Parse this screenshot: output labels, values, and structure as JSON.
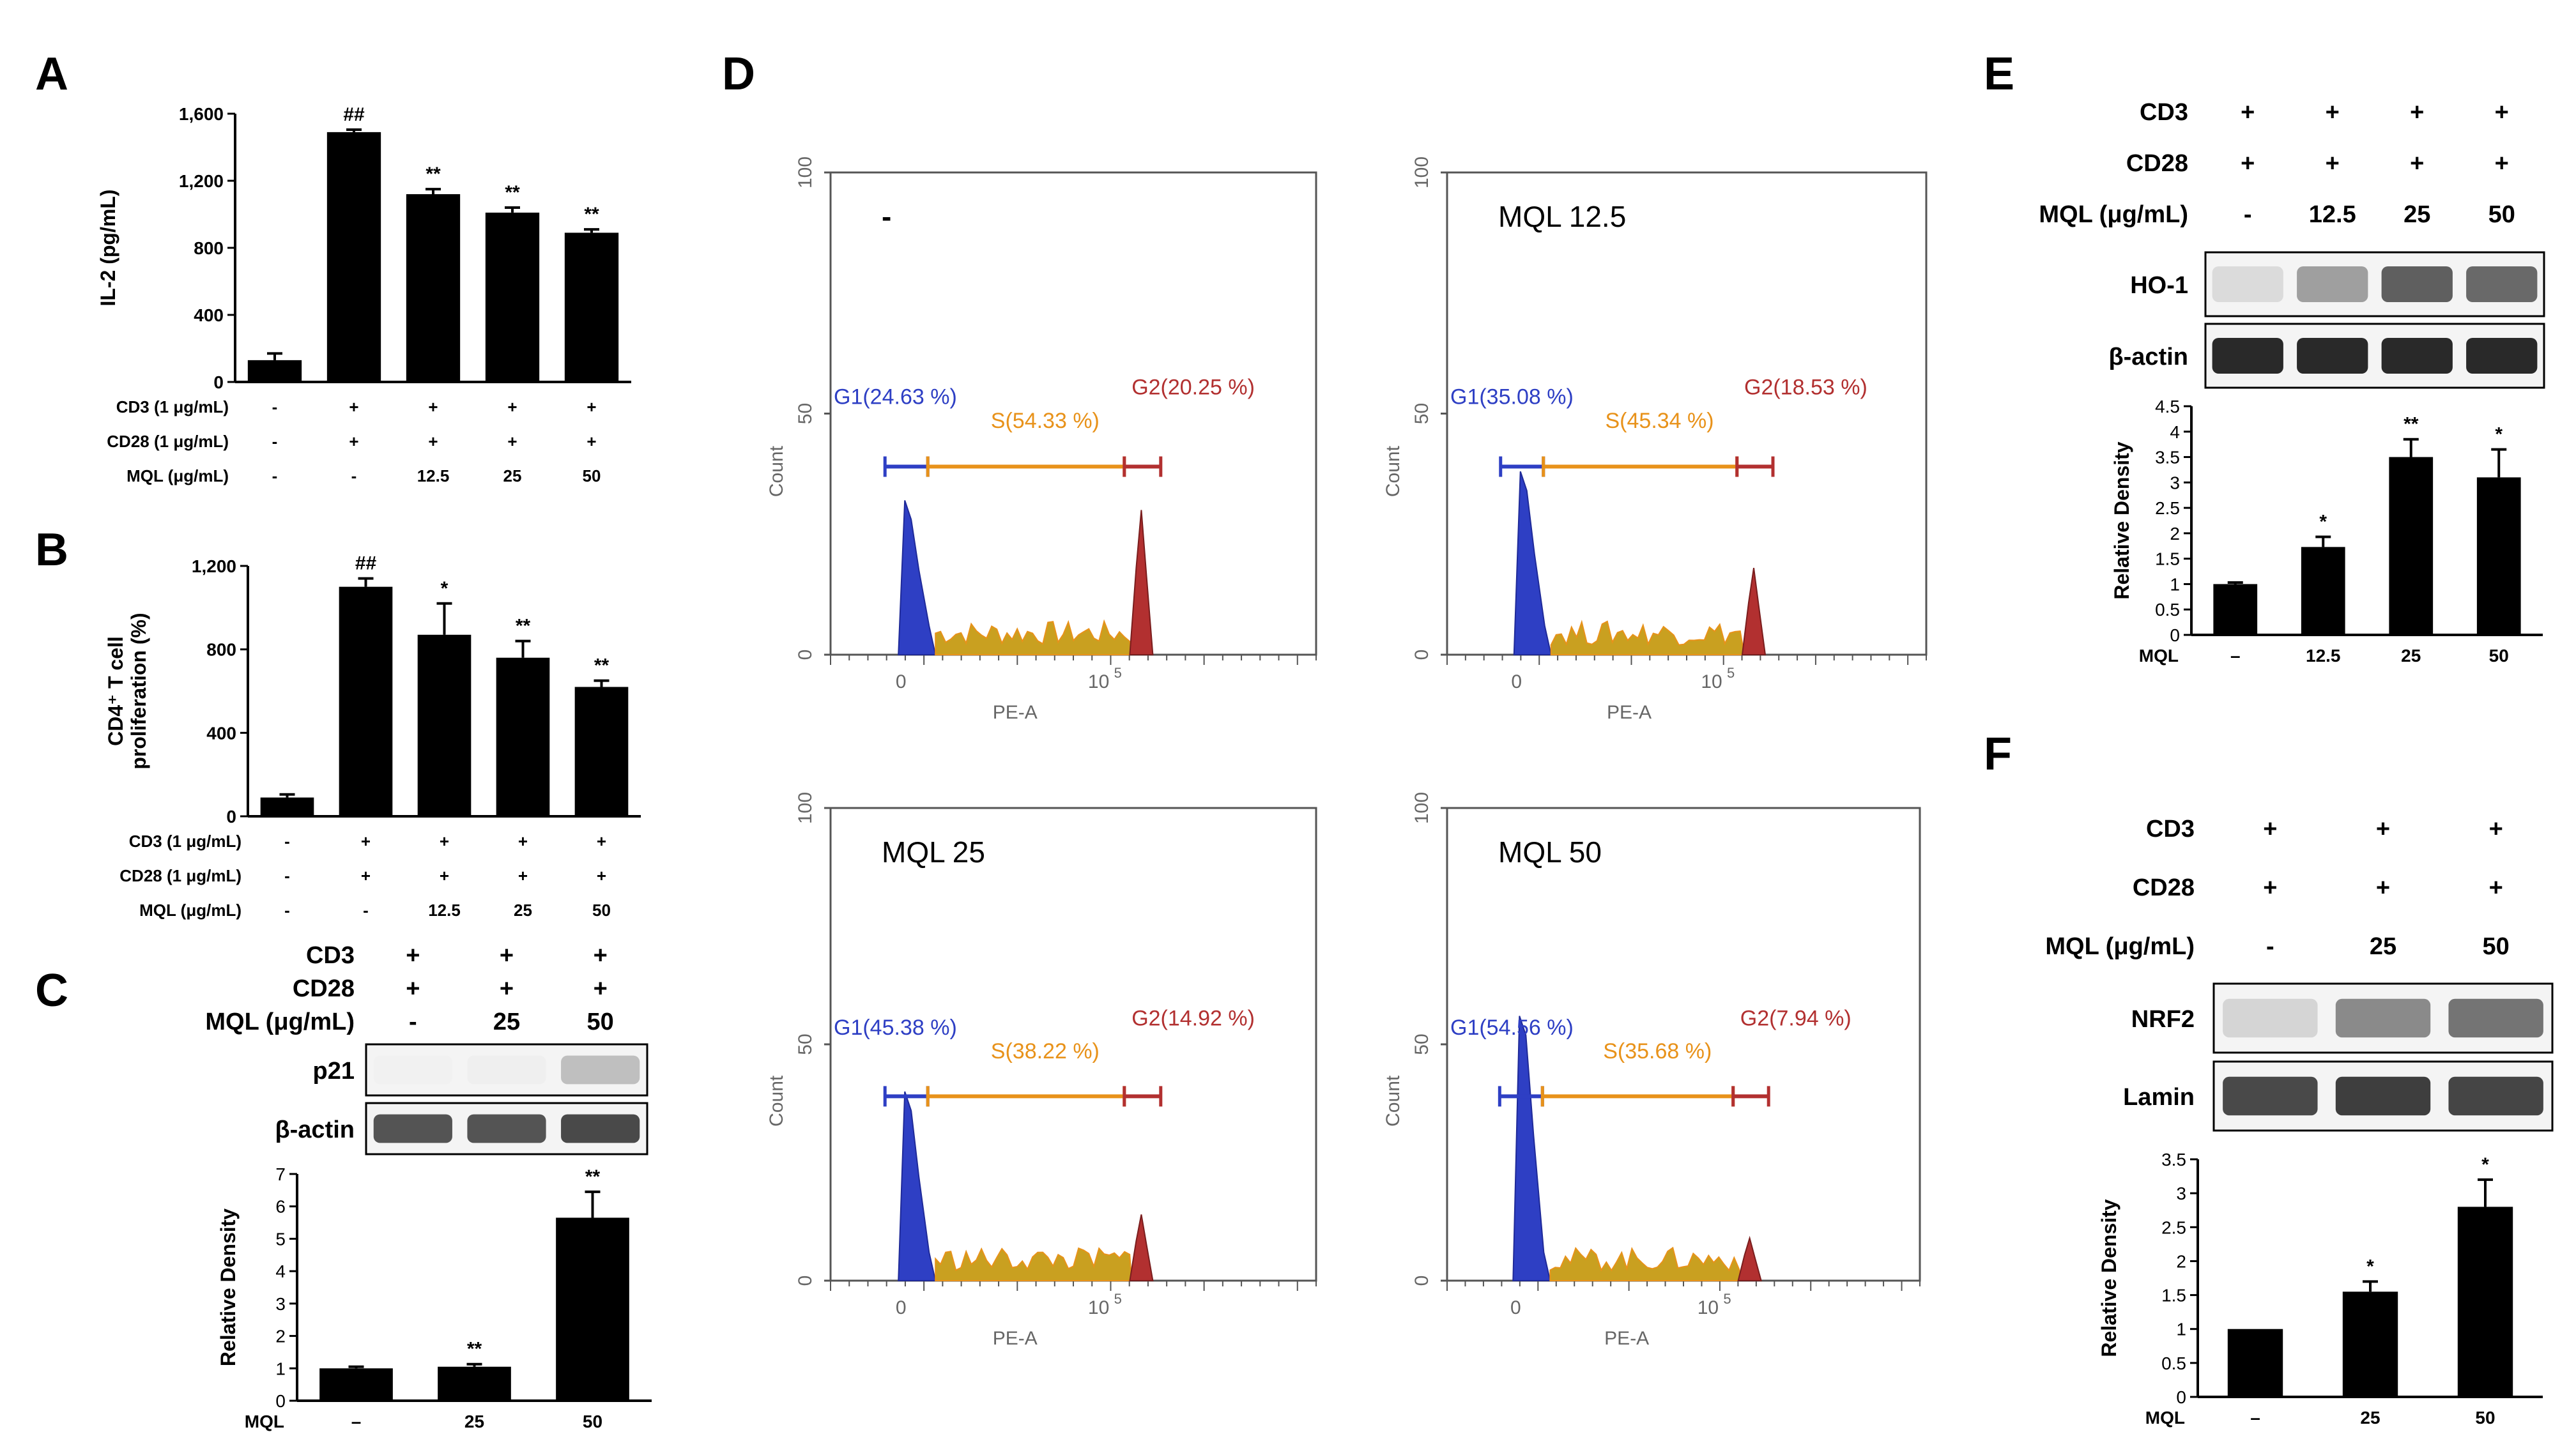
{
  "panel_labels": [
    "A",
    "B",
    "C",
    "D",
    "E",
    "F"
  ],
  "charts": {
    "A": {
      "type": "bar",
      "ylabel": "IL-2 (pg/mL)",
      "yticks": [
        "0",
        "400",
        "800",
        "1,200",
        "1,600"
      ],
      "ylim": [
        0,
        1600
      ],
      "values": [
        130,
        1490,
        1120,
        1010,
        890
      ],
      "errors": [
        40,
        15,
        30,
        30,
        20
      ],
      "sig": [
        "",
        "##",
        "**",
        "**",
        "**"
      ],
      "conditions": [
        {
          "label": "CD3 (1 μg/mL)",
          "values": [
            "-",
            "+",
            "+",
            "+",
            "+"
          ]
        },
        {
          "label": "CD28 (1 μg/mL)",
          "values": [
            "-",
            "+",
            "+",
            "+",
            "+"
          ]
        },
        {
          "label": "MQL (μg/mL)",
          "values": [
            "-",
            "-",
            "12.5",
            "25",
            "50"
          ]
        }
      ]
    },
    "B": {
      "type": "bar",
      "ylabel_line1": "CD4⁺ T cell",
      "ylabel_line2": "proliferation (%)",
      "yticks": [
        "0",
        "400",
        "800",
        "1,200"
      ],
      "ylim": [
        0,
        1200
      ],
      "values": [
        90,
        1100,
        870,
        760,
        620
      ],
      "errors": [
        15,
        40,
        150,
        80,
        30
      ],
      "sig": [
        "",
        "##",
        "*",
        "**",
        "**"
      ],
      "conditions": [
        {
          "label": "CD3 (1 μg/mL)",
          "values": [
            "-",
            "+",
            "+",
            "+",
            "+"
          ]
        },
        {
          "label": "CD28 (1 μg/mL)",
          "values": [
            "-",
            "+",
            "+",
            "+",
            "+"
          ]
        },
        {
          "label": "MQL (μg/mL)",
          "values": [
            "-",
            "-",
            "12.5",
            "25",
            "50"
          ]
        }
      ]
    },
    "C": {
      "type": "bar",
      "ylabel": "Relative Density",
      "yticks": [
        "0",
        "1",
        "2",
        "3",
        "4",
        "5",
        "6",
        "7"
      ],
      "ylim": [
        0,
        7
      ],
      "categories": [
        "–",
        "25",
        "50"
      ],
      "xlabel": "MQL",
      "values": [
        1.0,
        1.05,
        5.65
      ],
      "errors": [
        0.05,
        0.08,
        0.8
      ],
      "sig": [
        "",
        "**",
        "**"
      ]
    },
    "E": {
      "type": "bar",
      "ylabel": "Relative Density",
      "yticks": [
        "0",
        "0.5",
        "1",
        "1.5",
        "2",
        "2.5",
        "3",
        "3.5",
        "4",
        "4.5"
      ],
      "ylim": [
        0,
        4.5
      ],
      "categories": [
        "–",
        "12.5",
        "25",
        "50"
      ],
      "xlabel": "MQL",
      "values": [
        1.0,
        1.73,
        3.5,
        3.1
      ],
      "errors": [
        0.03,
        0.2,
        0.35,
        0.55
      ],
      "sig": [
        "",
        "*",
        "**",
        "*"
      ]
    },
    "F": {
      "type": "bar",
      "ylabel": "Relative Density",
      "yticks": [
        "0",
        "0.5",
        "1",
        "1.5",
        "2",
        "2.5",
        "3",
        "3.5"
      ],
      "ylim": [
        0,
        3.5
      ],
      "categories": [
        "–",
        "25",
        "50"
      ],
      "xlabel": "MQL",
      "values": [
        1.0,
        1.55,
        2.8
      ],
      "errors": [
        0.0,
        0.15,
        0.4
      ],
      "sig": [
        "",
        "*",
        "*"
      ]
    }
  },
  "blots": {
    "C": {
      "rows": [
        {
          "label": "CD3",
          "values": [
            "+",
            "+",
            "+"
          ]
        },
        {
          "label": "CD28",
          "values": [
            "+",
            "+",
            "+"
          ]
        },
        {
          "label": "MQL (μg/mL)",
          "values": [
            "-",
            "25",
            "50"
          ]
        }
      ],
      "bands": [
        {
          "label": "p21",
          "intensities": [
            0.02,
            0.03,
            0.25
          ]
        },
        {
          "label": "β-actin",
          "intensities": [
            0.75,
            0.75,
            0.8
          ]
        }
      ]
    },
    "E": {
      "rows": [
        {
          "label": "CD3",
          "values": [
            "+",
            "+",
            "+",
            "+"
          ]
        },
        {
          "label": "CD28",
          "values": [
            "+",
            "+",
            "+",
            "+"
          ]
        },
        {
          "label": "MQL (μg/mL)",
          "values": [
            "-",
            "12.5",
            "25",
            "50"
          ]
        }
      ],
      "bands": [
        {
          "label": "HO-1",
          "intensities": [
            0.12,
            0.4,
            0.7,
            0.65
          ]
        },
        {
          "label": "β-actin",
          "intensities": [
            0.95,
            0.95,
            0.95,
            0.95
          ]
        }
      ]
    },
    "F": {
      "rows": [
        {
          "label": "CD3",
          "values": [
            "+",
            "+",
            "+"
          ]
        },
        {
          "label": "CD28",
          "values": [
            "+",
            "+",
            "+"
          ]
        },
        {
          "label": "MQL (μg/mL)",
          "values": [
            "-",
            "25",
            "50"
          ]
        }
      ],
      "bands": [
        {
          "label": "NRF2",
          "intensities": [
            0.15,
            0.5,
            0.6
          ]
        },
        {
          "label": "Lamin",
          "intensities": [
            0.8,
            0.85,
            0.82
          ]
        }
      ]
    }
  },
  "flow": {
    "ylabel": "Count",
    "xlabel": "PE-A",
    "yticks": [
      "0",
      "50",
      "100"
    ],
    "xtick_zero": "0",
    "xtick_base": "10",
    "xtick_exp": "5",
    "colors": {
      "g1": "#2e3fc4",
      "s": "#e8921a",
      "g2": "#b23030"
    },
    "plots": [
      {
        "title": "-",
        "g1": "G1(24.63 %)",
        "s": "S(54.33 %)",
        "g2": "G2(20.25 %)",
        "g1_peak": 32,
        "g2_peak": 30
      },
      {
        "title": "MQL 12.5",
        "g1": "G1(35.08 %)",
        "s": "S(45.34 %)",
        "g2": "G2(18.53 %)",
        "g1_peak": 38,
        "g2_peak": 18
      },
      {
        "title": "MQL 25",
        "g1": "G1(45.38 %)",
        "s": "S(38.22 %)",
        "g2": "G2(14.92 %)",
        "g1_peak": 40,
        "g2_peak": 14
      },
      {
        "title": "MQL 50",
        "g1": "G1(54.56 %)",
        "s": "S(35.68 %)",
        "g2": "G2(7.94 %)",
        "g1_peak": 56,
        "g2_peak": 9
      }
    ]
  }
}
